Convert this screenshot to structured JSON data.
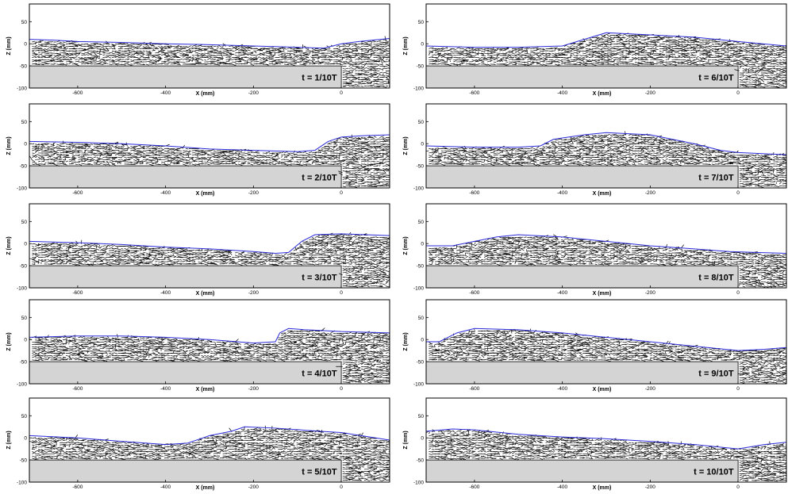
{
  "axes": {
    "xlabel": "X (mm)",
    "ylabel": "Z (mm)",
    "xticks": [
      -600,
      -400,
      -200,
      0
    ],
    "yticks": [
      50,
      0,
      -50,
      -100
    ],
    "xlim": [
      -710,
      110
    ],
    "ylim": [
      -100,
      90
    ]
  },
  "colors": {
    "surface": "#2a2ad8",
    "step": "#d4d4d4",
    "vectors": "#000000",
    "frame": "#000000"
  },
  "step": {
    "x_end": 0,
    "top": -50,
    "bottom": -100
  },
  "chart_data": [
    {
      "type": "line",
      "label": "t = 1/10T",
      "surface": [
        [
          -710,
          10
        ],
        [
          -650,
          8
        ],
        [
          -600,
          5
        ],
        [
          -500,
          3
        ],
        [
          -400,
          0
        ],
        [
          -300,
          -2
        ],
        [
          -200,
          -5
        ],
        [
          -100,
          -8
        ],
        [
          -40,
          -10
        ],
        [
          0,
          0
        ],
        [
          40,
          5
        ],
        [
          110,
          12
        ]
      ]
    },
    {
      "type": "line",
      "label": "t = 2/10T",
      "surface": [
        [
          -710,
          5
        ],
        [
          -600,
          3
        ],
        [
          -500,
          0
        ],
        [
          -400,
          -5
        ],
        [
          -300,
          -12
        ],
        [
          -200,
          -15
        ],
        [
          -100,
          -18
        ],
        [
          -60,
          -15
        ],
        [
          -30,
          5
        ],
        [
          0,
          15
        ],
        [
          50,
          18
        ],
        [
          110,
          20
        ]
      ]
    },
    {
      "type": "line",
      "label": "t = 3/10T",
      "surface": [
        [
          -710,
          5
        ],
        [
          -600,
          2
        ],
        [
          -500,
          -2
        ],
        [
          -400,
          -8
        ],
        [
          -300,
          -12
        ],
        [
          -200,
          -18
        ],
        [
          -150,
          -22
        ],
        [
          -120,
          -20
        ],
        [
          -90,
          5
        ],
        [
          -60,
          20
        ],
        [
          0,
          22
        ],
        [
          110,
          18
        ]
      ]
    },
    {
      "type": "line",
      "label": "t = 4/10T",
      "surface": [
        [
          -710,
          5
        ],
        [
          -600,
          8
        ],
        [
          -500,
          8
        ],
        [
          -400,
          5
        ],
        [
          -300,
          0
        ],
        [
          -200,
          -8
        ],
        [
          -150,
          -5
        ],
        [
          -140,
          15
        ],
        [
          -120,
          25
        ],
        [
          -80,
          22
        ],
        [
          0,
          18
        ],
        [
          110,
          15
        ]
      ]
    },
    {
      "type": "line",
      "label": "t = 5/10T",
      "surface": [
        [
          -710,
          5
        ],
        [
          -600,
          0
        ],
        [
          -500,
          -8
        ],
        [
          -400,
          -15
        ],
        [
          -350,
          -12
        ],
        [
          -300,
          5
        ],
        [
          -250,
          15
        ],
        [
          -220,
          25
        ],
        [
          -150,
          22
        ],
        [
          -50,
          15
        ],
        [
          0,
          12
        ],
        [
          110,
          -5
        ]
      ]
    },
    {
      "type": "line",
      "label": "t = 6/10T",
      "surface": [
        [
          -710,
          -5
        ],
        [
          -600,
          -8
        ],
        [
          -500,
          -8
        ],
        [
          -400,
          -5
        ],
        [
          -350,
          10
        ],
        [
          -300,
          25
        ],
        [
          -200,
          20
        ],
        [
          -100,
          15
        ],
        [
          0,
          5
        ],
        [
          110,
          -5
        ]
      ]
    },
    {
      "type": "line",
      "label": "t = 7/10T",
      "surface": [
        [
          -710,
          -5
        ],
        [
          -600,
          -8
        ],
        [
          -500,
          -8
        ],
        [
          -450,
          -5
        ],
        [
          -420,
          10
        ],
        [
          -350,
          20
        ],
        [
          -300,
          25
        ],
        [
          -200,
          20
        ],
        [
          -100,
          0
        ],
        [
          -40,
          -15
        ],
        [
          0,
          -20
        ],
        [
          110,
          -25
        ]
      ]
    },
    {
      "type": "line",
      "label": "t = 8/10T",
      "surface": [
        [
          -710,
          -5
        ],
        [
          -650,
          -5
        ],
        [
          -600,
          5
        ],
        [
          -550,
          15
        ],
        [
          -500,
          20
        ],
        [
          -400,
          15
        ],
        [
          -300,
          5
        ],
        [
          -200,
          -5
        ],
        [
          -100,
          -12
        ],
        [
          -20,
          -18
        ],
        [
          40,
          -20
        ],
        [
          110,
          -22
        ]
      ]
    },
    {
      "type": "line",
      "label": "t = 9/10T",
      "surface": [
        [
          -710,
          -5
        ],
        [
          -680,
          -5
        ],
        [
          -640,
          15
        ],
        [
          -600,
          25
        ],
        [
          -500,
          22
        ],
        [
          -400,
          15
        ],
        [
          -300,
          5
        ],
        [
          -200,
          -5
        ],
        [
          -100,
          -15
        ],
        [
          0,
          -25
        ],
        [
          60,
          -22
        ],
        [
          110,
          -18
        ]
      ]
    },
    {
      "type": "line",
      "label": "t = 10/10T",
      "surface": [
        [
          -710,
          15
        ],
        [
          -650,
          20
        ],
        [
          -600,
          18
        ],
        [
          -500,
          8
        ],
        [
          -400,
          2
        ],
        [
          -300,
          -2
        ],
        [
          -200,
          -8
        ],
        [
          -100,
          -15
        ],
        [
          -30,
          -22
        ],
        [
          0,
          -25
        ],
        [
          60,
          -15
        ],
        [
          110,
          -10
        ]
      ]
    }
  ]
}
